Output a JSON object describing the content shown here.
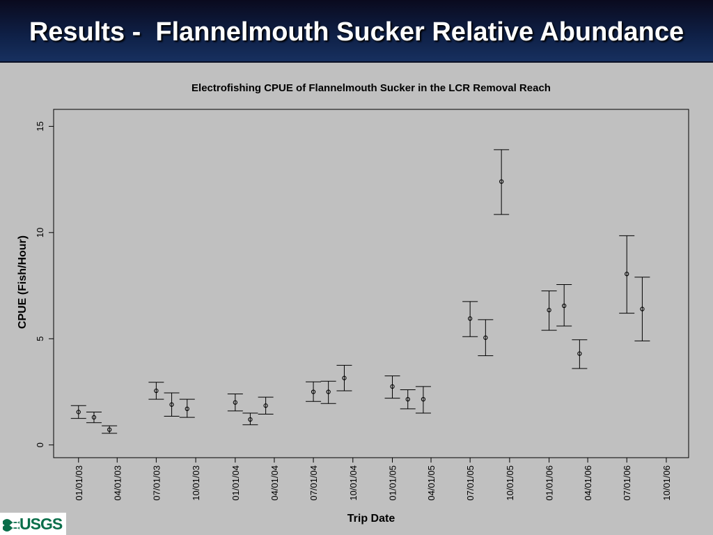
{
  "slide": {
    "title": "Results -  Flannelmouth Sucker Relative Abundance",
    "logo_text": "USGS"
  },
  "colors": {
    "header": "#0f2148",
    "background": "#c0c0c0",
    "logo": "#0a6e4a"
  },
  "chart_data": {
    "type": "scatter",
    "title": "Electrofishing CPUE of Flannelmouth Sucker in the LCR Removal Reach",
    "xlabel": "Trip Date",
    "ylabel": "CPUE (Fish/Hour)",
    "ylim": [
      -0.6,
      15.8
    ],
    "xlim": [
      "2002-11-04",
      "2006-11-22"
    ],
    "yticks": [
      0,
      5,
      10,
      15
    ],
    "xticks": [
      "01/01/03",
      "04/01/03",
      "07/01/03",
      "10/01/03",
      "01/01/04",
      "04/01/04",
      "07/01/04",
      "10/01/04",
      "01/01/05",
      "04/01/05",
      "07/01/05",
      "10/01/05",
      "01/01/06",
      "04/01/06",
      "07/01/06",
      "10/01/06"
    ],
    "error_bars": true,
    "grid": false,
    "points": [
      {
        "x": "2003-01-01",
        "y": 1.55,
        "low": 1.25,
        "high": 1.85
      },
      {
        "x": "2003-02-06",
        "y": 1.3,
        "low": 1.05,
        "high": 1.55
      },
      {
        "x": "2003-03-14",
        "y": 0.72,
        "low": 0.55,
        "high": 0.9
      },
      {
        "x": "2003-07-01",
        "y": 2.55,
        "low": 2.15,
        "high": 2.95
      },
      {
        "x": "2003-08-06",
        "y": 1.9,
        "low": 1.35,
        "high": 2.45
      },
      {
        "x": "2003-09-11",
        "y": 1.7,
        "low": 1.3,
        "high": 2.15
      },
      {
        "x": "2004-01-01",
        "y": 2.0,
        "low": 1.6,
        "high": 2.4
      },
      {
        "x": "2004-02-05",
        "y": 1.2,
        "low": 0.95,
        "high": 1.5
      },
      {
        "x": "2004-03-12",
        "y": 1.85,
        "low": 1.45,
        "high": 2.25
      },
      {
        "x": "2004-07-01",
        "y": 2.5,
        "low": 2.05,
        "high": 2.97
      },
      {
        "x": "2004-08-05",
        "y": 2.5,
        "low": 1.95,
        "high": 3.0
      },
      {
        "x": "2004-09-11",
        "y": 3.15,
        "low": 2.55,
        "high": 3.75
      },
      {
        "x": "2005-01-01",
        "y": 2.75,
        "low": 2.2,
        "high": 3.25
      },
      {
        "x": "2005-02-06",
        "y": 2.15,
        "low": 1.7,
        "high": 2.6
      },
      {
        "x": "2005-03-14",
        "y": 2.15,
        "low": 1.5,
        "high": 2.75
      },
      {
        "x": "2005-07-01",
        "y": 5.95,
        "low": 5.1,
        "high": 6.75
      },
      {
        "x": "2005-08-06",
        "y": 5.05,
        "low": 4.2,
        "high": 5.9
      },
      {
        "x": "2005-09-12",
        "y": 12.4,
        "low": 10.85,
        "high": 13.9
      },
      {
        "x": "2006-01-01",
        "y": 6.35,
        "low": 5.4,
        "high": 7.25
      },
      {
        "x": "2006-02-05",
        "y": 6.55,
        "low": 5.6,
        "high": 7.55
      },
      {
        "x": "2006-03-13",
        "y": 4.3,
        "low": 3.6,
        "high": 4.95
      },
      {
        "x": "2006-07-01",
        "y": 8.05,
        "low": 6.2,
        "high": 9.85
      },
      {
        "x": "2006-08-06",
        "y": 6.4,
        "low": 4.9,
        "high": 7.9
      }
    ]
  }
}
